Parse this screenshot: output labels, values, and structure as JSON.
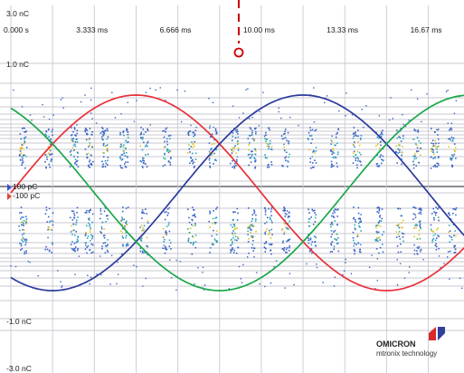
{
  "time_axis": {
    "labels": [
      "0.000 s",
      "3.333 ms",
      "6.666 ms",
      "10.00 ms",
      "13.33 ms",
      "16.67 ms"
    ]
  },
  "charge_axis": {
    "labels": [
      "3.0 nC",
      "1.0 nC",
      "100 pC",
      "-100 pC",
      "-1.0 nC",
      "-3.0 nC"
    ]
  },
  "colors": {
    "phase_red": "#e8313a",
    "phase_green": "#1aa84a",
    "phase_blue": "#2c3b9c",
    "grid_vertical": "#c9c9d3",
    "grid_horizontal": "#b6b6c0",
    "baseline": "#8c8c94",
    "cursor": "#cc0000",
    "marker_blue": "#3a4fcf",
    "marker_red": "#e04a3a",
    "logo_red": "#d92b2b",
    "logo_blue": "#2f3f9c"
  },
  "logo": {
    "brand": "OMICRON",
    "tagline": "mtronix technology",
    "icon": "omicron-logo-icon"
  },
  "chart_data": {
    "type": "scatter",
    "title": "",
    "xlabel": "",
    "ylabel": "",
    "x_unit": "ms",
    "xlim": [
      0,
      18.0
    ],
    "x_tick_values": [
      0,
      3.333,
      6.666,
      10.0,
      13.33,
      16.67
    ],
    "x_tick_labels": [
      "0.000 s",
      "3.333 ms",
      "6.666 ms",
      "10.00 ms",
      "13.33 ms",
      "16.67 ms"
    ],
    "y_tick_labels": [
      "3.0 nC",
      "1.0 nC",
      "100 pC",
      "-100 pC",
      "-1.0 nC",
      "-3.0 nC"
    ],
    "cursor_time_ms": 9.1,
    "series": [
      {
        "type": "line",
        "color": "#e8313a",
        "phase_offset_deg": 0
      },
      {
        "type": "line",
        "color": "#2c3b9c",
        "phase_offset_deg": -120
      },
      {
        "type": "line",
        "color": "#1aa84a",
        "phase_offset_deg": 120
      }
    ],
    "pd_clusters_ms": [
      0.45,
      1.5,
      2.5,
      3.1,
      3.7,
      4.5,
      5.3,
      6.2,
      7.2,
      8.05,
      8.9,
      9.6,
      10.25,
      10.95,
      12.0,
      12.9,
      13.8,
      14.7,
      15.5,
      16.2,
      16.9,
      17.6
    ]
  }
}
